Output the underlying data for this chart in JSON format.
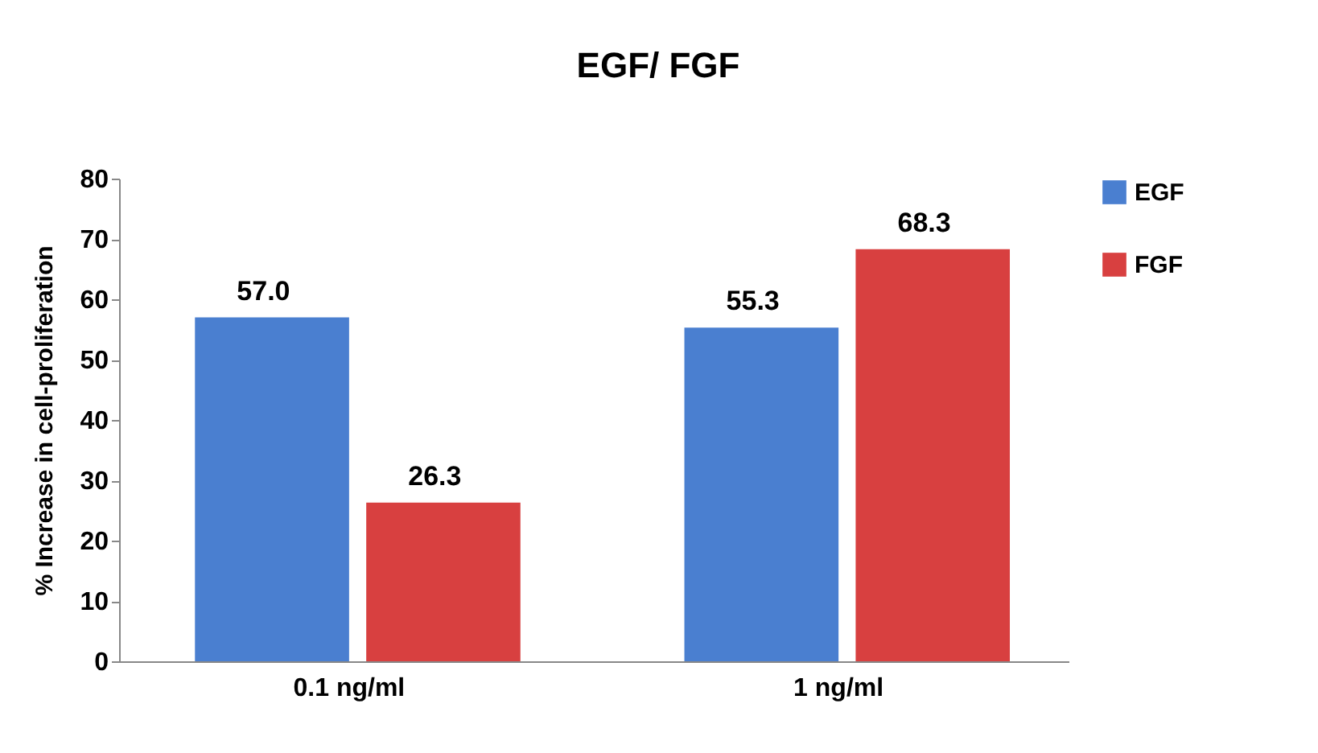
{
  "chart_data": {
    "type": "bar",
    "title": "EGF/ FGF",
    "ylabel": "% Increase in cell-proliferation",
    "categories": [
      "0.1 ng/ml",
      "1 ng/ml"
    ],
    "series": [
      {
        "name": "EGF",
        "color": "#4a7fd0",
        "values": [
          57.0,
          55.3
        ],
        "value_labels": [
          "57.0",
          "55.3"
        ]
      },
      {
        "name": "FGF",
        "color": "#d84040",
        "values": [
          26.3,
          68.3
        ],
        "value_labels": [
          "26.3",
          "68.3"
        ]
      }
    ],
    "ylim": [
      0,
      80
    ],
    "yticks": [
      0,
      10,
      20,
      30,
      40,
      50,
      60,
      70,
      80
    ],
    "grid": false,
    "legend": "right"
  }
}
